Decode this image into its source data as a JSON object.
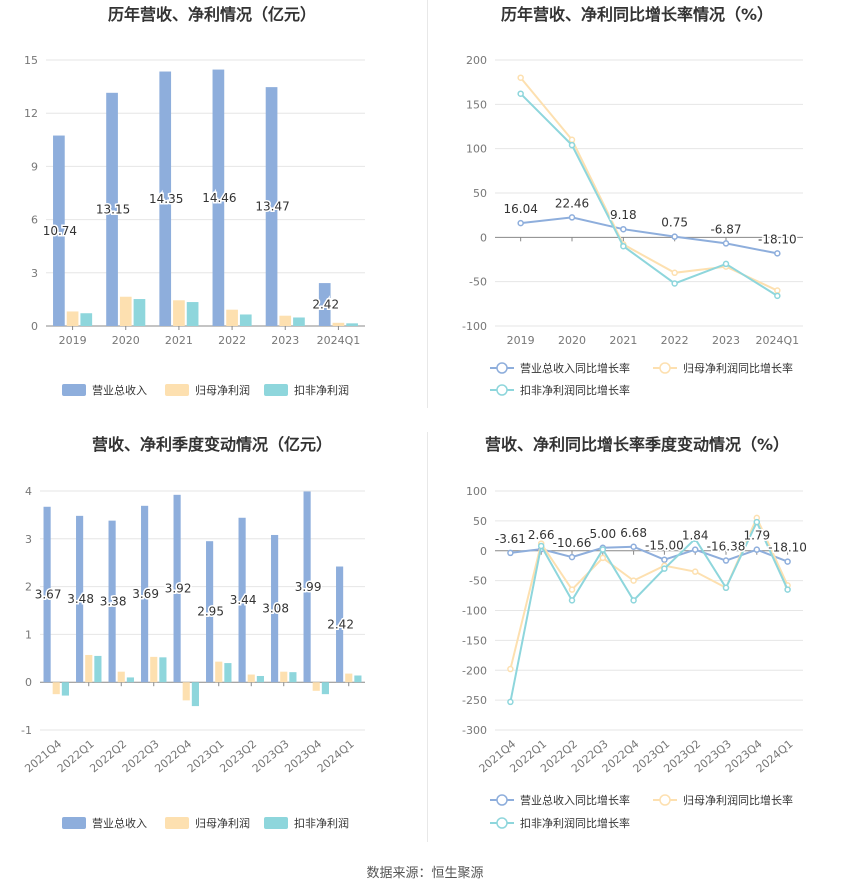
{
  "source": "数据来源：恒生聚源",
  "colors": {
    "rev": "#8eaedc",
    "np": "#fde0b0",
    "dnp": "#8ed6dc",
    "grid": "#e6e6e6",
    "axis": "#888888"
  },
  "chart_data": [
    {
      "type": "bar",
      "title": "历年营收、净利情况（亿元）",
      "categories": [
        "2019",
        "2020",
        "2021",
        "2022",
        "2023",
        "2024Q1"
      ],
      "ylim": [
        0,
        15
      ],
      "yticks": [
        0,
        3,
        6,
        9,
        12,
        15
      ],
      "series": [
        {
          "name": "营业总收入",
          "values": [
            10.74,
            13.15,
            14.35,
            14.46,
            13.47,
            2.42
          ]
        },
        {
          "name": "归母净利润",
          "values": [
            0.82,
            1.65,
            1.45,
            0.92,
            0.58,
            0.18
          ]
        },
        {
          "name": "扣非净利润",
          "values": [
            0.72,
            1.52,
            1.35,
            0.65,
            0.48,
            0.15
          ]
        }
      ],
      "data_labels": [
        "10.74",
        "13.15",
        "14.35",
        "14.46",
        "13.47",
        "2.42"
      ],
      "grid": true,
      "legend": "bottom"
    },
    {
      "type": "line",
      "title": "历年营收、净利同比增长率情况（%）",
      "categories": [
        "2019",
        "2020",
        "2021",
        "2022",
        "2023",
        "2024Q1"
      ],
      "ylim": [
        -100,
        200
      ],
      "yticks": [
        -100,
        -50,
        0,
        50,
        100,
        150,
        200
      ],
      "series": [
        {
          "name": "营业总收入同比增长率",
          "values": [
            16.04,
            22.46,
            9.18,
            0.75,
            -6.87,
            -18.1
          ]
        },
        {
          "name": "归母净利润同比增长率",
          "values": [
            180,
            110,
            -8,
            -40,
            -33,
            -60
          ]
        },
        {
          "name": "扣非净利润同比增长率",
          "values": [
            162,
            104,
            -10,
            -52,
            -30,
            -66
          ]
        }
      ],
      "data_labels": [
        "16.04",
        "22.46",
        "9.18",
        "0.75",
        "-6.87",
        "-18.10"
      ],
      "grid": true,
      "legend": "bottom"
    },
    {
      "type": "bar",
      "title": "营收、净利季度变动情况（亿元）",
      "categories": [
        "2021Q4",
        "2022Q1",
        "2022Q2",
        "2022Q3",
        "2022Q4",
        "2023Q1",
        "2023Q2",
        "2023Q3",
        "2023Q4",
        "2024Q1"
      ],
      "ylim": [
        -1,
        4
      ],
      "yticks": [
        -1,
        0,
        1,
        2,
        3,
        4
      ],
      "series": [
        {
          "name": "营业总收入",
          "values": [
            3.67,
            3.48,
            3.38,
            3.69,
            3.92,
            2.95,
            3.44,
            3.08,
            3.99,
            2.42
          ]
        },
        {
          "name": "归母净利润",
          "values": [
            -0.25,
            0.57,
            0.22,
            0.53,
            -0.38,
            0.43,
            0.16,
            0.22,
            -0.18,
            0.18
          ]
        },
        {
          "name": "扣非净利润",
          "values": [
            -0.28,
            0.55,
            0.1,
            0.52,
            -0.5,
            0.4,
            0.13,
            0.21,
            -0.25,
            0.14
          ]
        }
      ],
      "data_labels": [
        "3.67",
        "3.48",
        "3.38",
        "3.69",
        "3.92",
        "2.95",
        "3.44",
        "3.08",
        "3.99",
        "2.42"
      ],
      "grid": true,
      "legend": "bottom"
    },
    {
      "type": "line",
      "title": "营收、净利同比增长率季度变动情况（%）",
      "categories": [
        "2021Q4",
        "2022Q1",
        "2022Q2",
        "2022Q3",
        "2022Q4",
        "2023Q1",
        "2023Q2",
        "2023Q3",
        "2023Q4",
        "2024Q1"
      ],
      "ylim": [
        -300,
        100
      ],
      "yticks": [
        -300,
        -250,
        -200,
        -150,
        -100,
        -50,
        0,
        50,
        100
      ],
      "series": [
        {
          "name": "营业总收入同比增长率",
          "values": [
            -3.61,
            2.66,
            -10.66,
            5.0,
            6.68,
            -15.0,
            1.84,
            -16.38,
            1.79,
            -18.1
          ]
        },
        {
          "name": "归母净利润同比增长率",
          "values": [
            -198,
            12,
            -65,
            -12,
            -50,
            -25,
            -35,
            -62,
            55,
            -58
          ]
        },
        {
          "name": "扣非净利润同比增长率",
          "values": [
            -253,
            8,
            -83,
            2,
            -83,
            -30,
            20,
            -62,
            48,
            -65
          ]
        }
      ],
      "data_labels": [
        "-3.61",
        "2.66",
        "-10.66",
        "5.00",
        "6.68",
        "-15.00",
        "1.84",
        "-16.38",
        "1.79",
        "-18.10"
      ],
      "grid": true,
      "legend": "bottom"
    }
  ]
}
